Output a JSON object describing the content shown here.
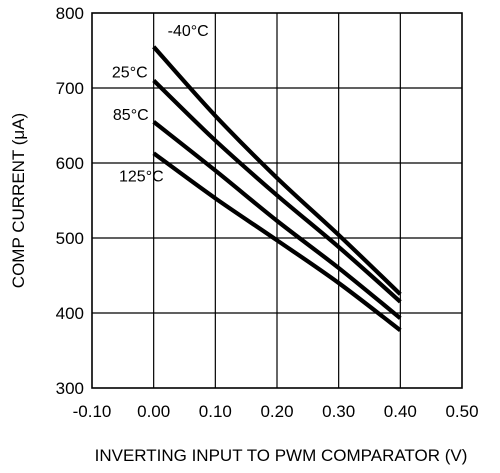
{
  "chart_data": {
    "type": "line",
    "title": "",
    "xlabel": "INVERTING INPUT TO PWM COMPARATOR (V)",
    "ylabel": "COMP CURRENT (μA)",
    "xlim": [
      -0.1,
      0.5
    ],
    "ylim": [
      300,
      800
    ],
    "x_ticks": [
      "-0.10",
      "0.00",
      "0.10",
      "0.20",
      "0.30",
      "0.40",
      "0.50"
    ],
    "y_ticks": [
      "300",
      "400",
      "500",
      "600",
      "700",
      "800"
    ],
    "grid": true,
    "legend": "none",
    "series": [
      {
        "name": "-40°C",
        "x": [
          0.0,
          0.1,
          0.2,
          0.3,
          0.4
        ],
        "y": [
          755,
          663,
          580,
          504,
          425
        ]
      },
      {
        "name": "25°C",
        "x": [
          0.0,
          0.1,
          0.2,
          0.3,
          0.4
        ],
        "y": [
          710,
          630,
          557,
          488,
          415
        ]
      },
      {
        "name": "85°C",
        "x": [
          0.0,
          0.1,
          0.2,
          0.3,
          0.4
        ],
        "y": [
          655,
          590,
          523,
          460,
          393
        ]
      },
      {
        "name": "125°C",
        "x": [
          0.0,
          0.1,
          0.2,
          0.3,
          0.4
        ],
        "y": [
          613,
          553,
          497,
          440,
          377
        ]
      }
    ]
  }
}
